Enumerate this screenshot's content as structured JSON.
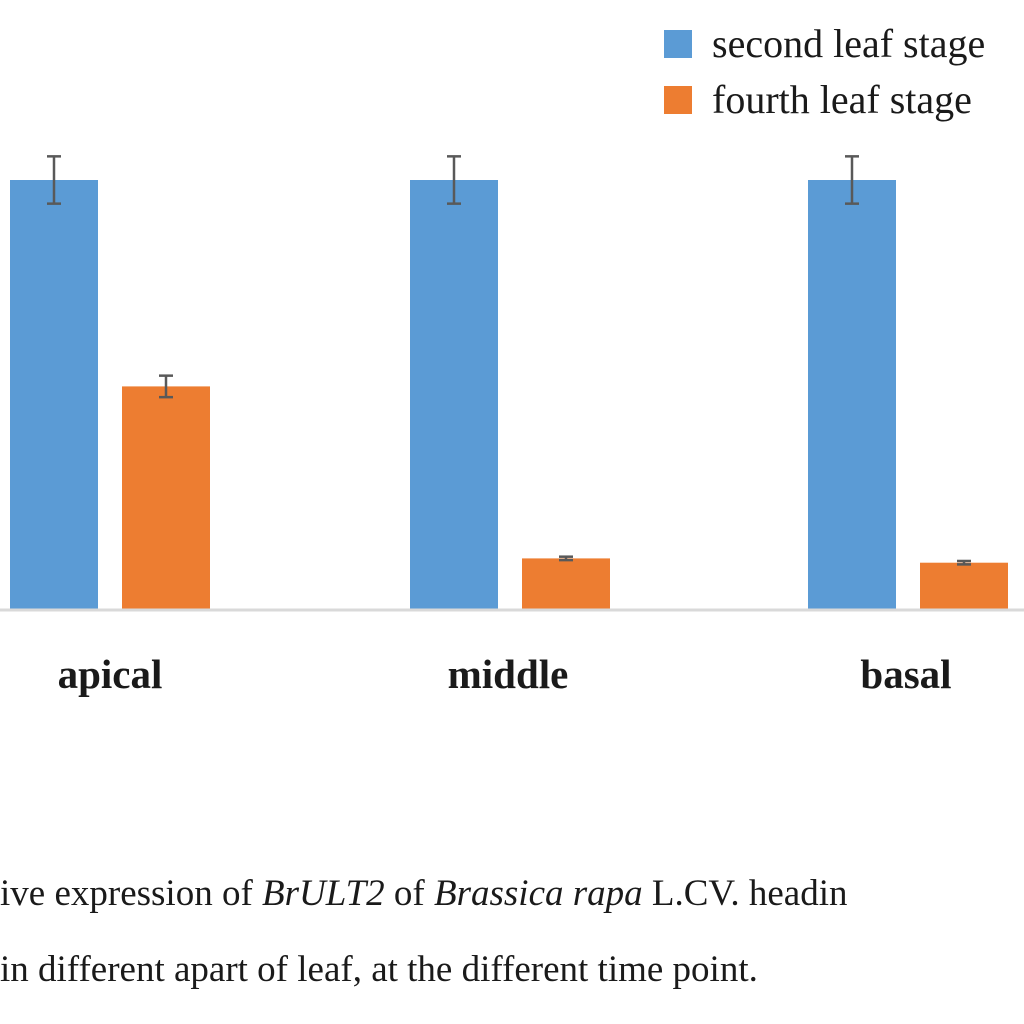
{
  "chart_data": {
    "type": "bar",
    "categories": [
      "apical",
      "middle",
      "basal"
    ],
    "series": [
      {
        "name": "second leaf stage",
        "color": "#5b9bd5",
        "values": [
          1.0,
          1.0,
          1.0
        ],
        "errors": [
          0.055,
          0.055,
          0.055
        ]
      },
      {
        "name": "fourth leaf stage",
        "color": "#ed7d31",
        "values": [
          0.52,
          0.12,
          0.11
        ],
        "errors": [
          0.025,
          0.004,
          0.004
        ]
      }
    ],
    "ylim": [
      0,
      1.2
    ],
    "grid": false,
    "legend_position": "top-right",
    "title": "",
    "xlabel": "",
    "ylabel": ""
  },
  "legend": {
    "items": [
      {
        "label": "second leaf stage",
        "color": "#5b9bd5"
      },
      {
        "label": "fourth leaf stage",
        "color": "#ed7d31"
      }
    ]
  },
  "caption": {
    "line1_part1": "ive expression of ",
    "line1_gene": "BrULT2",
    "line1_part2": " of ",
    "line1_species": "Brassica rapa",
    "line1_part3": " L.CV. headin",
    "line2": "in different apart of leaf, at the different time point."
  },
  "colors": {
    "axis": "#d9d9d9",
    "error_bar": "#595959"
  }
}
